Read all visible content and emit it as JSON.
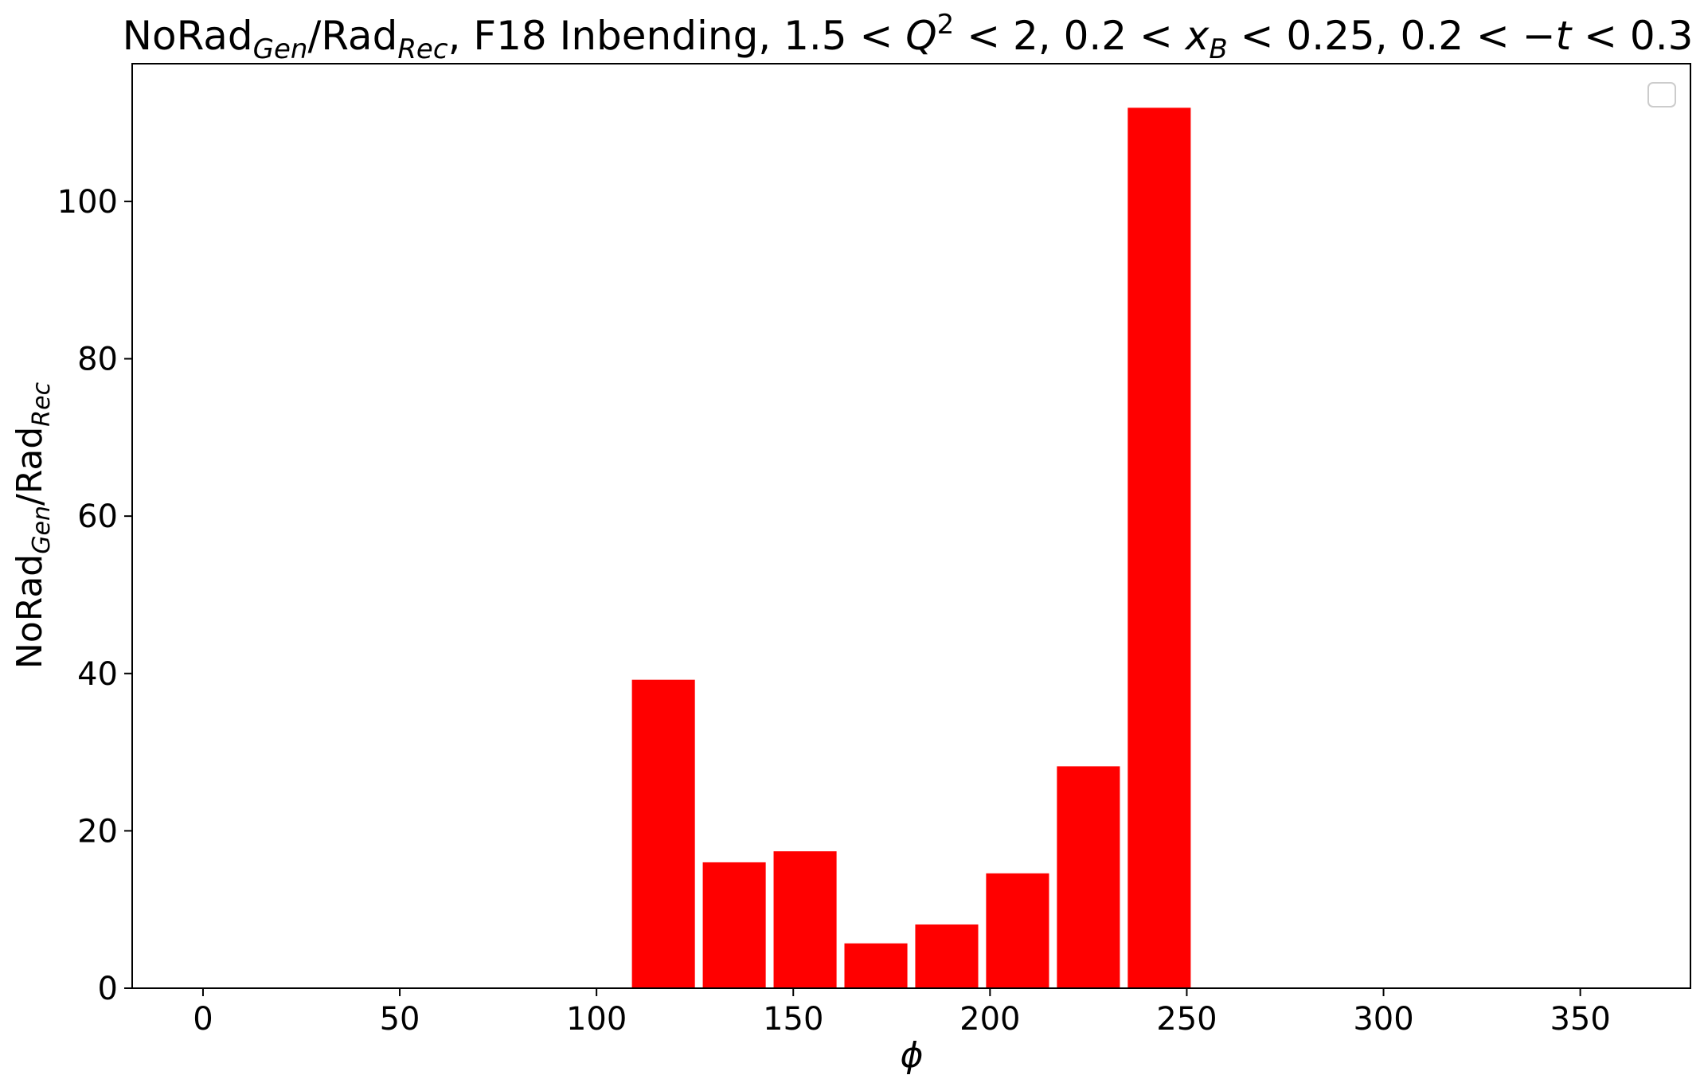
{
  "chart_data": {
    "type": "bar",
    "title": {
      "pre": "NoRad",
      "pre_sub": "Gen",
      "slash": "/Rad",
      "slash_sub": "Rec",
      "middle": ", F18 Inbending, 1.5 < ",
      "q": "Q",
      "q_sup": "2",
      "after_q": " < 2, 0.2 < ",
      "x": "x",
      "x_sub": "B",
      "after_x": " < 0.25, 0.2 < −",
      "t": "t",
      "after_t": " < 0.3"
    },
    "xlabel": "ϕ",
    "ylabel": {
      "pre": "NoRad",
      "pre_sub": "Gen",
      "slash": "/Rad",
      "slash_sub": "Rec"
    },
    "xlim": [
      -18,
      378
    ],
    "ylim": [
      0,
      117.5
    ],
    "xticks": [
      "0",
      "50",
      "100",
      "150",
      "200",
      "250",
      "300",
      "350"
    ],
    "yticks": [
      "0",
      "20",
      "40",
      "60",
      "80",
      "100"
    ],
    "bar_width": 16,
    "color": "#ff0000",
    "legend": "top-right (empty)",
    "grid": false,
    "bins": [
      {
        "x": 117,
        "value": 39.2
      },
      {
        "x": 135,
        "value": 16.0
      },
      {
        "x": 153,
        "value": 17.4
      },
      {
        "x": 171,
        "value": 5.7
      },
      {
        "x": 189,
        "value": 8.1
      },
      {
        "x": 207,
        "value": 14.6
      },
      {
        "x": 225,
        "value": 28.2
      },
      {
        "x": 243,
        "value": 111.9
      }
    ]
  }
}
